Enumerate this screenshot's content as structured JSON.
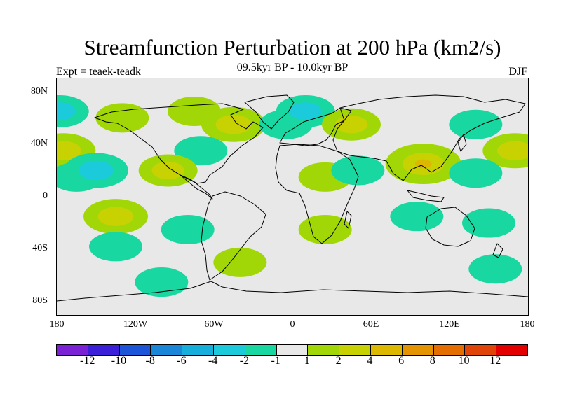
{
  "title": "Streamfunction Perturbation at 200 hPa (km2/s)",
  "experiment": "Expt = teaek-teadk",
  "period": "09.5kyr BP - 10.0kyr BP",
  "season": "DJF",
  "y_ticks": [
    "80N",
    "40N",
    "0",
    "40S",
    "80S"
  ],
  "x_ticks": [
    "180",
    "120W",
    "60W",
    "0",
    "60E",
    "120E",
    "180"
  ],
  "colorbar": {
    "colors": [
      "#7a22d4",
      "#3b1fd9",
      "#1c55d8",
      "#1a86d8",
      "#16aedb",
      "#1bcadb",
      "#19d7a0",
      "#e8e8e8",
      "#a2d707",
      "#c8d203",
      "#dcb800",
      "#e49400",
      "#e46e00",
      "#e04408",
      "#e40000"
    ],
    "labels": [
      "-12",
      "-10",
      "-8",
      "-6",
      "-4",
      "-2",
      "-1",
      "1",
      "2",
      "4",
      "6",
      "8",
      "10",
      "12"
    ]
  },
  "chart_data": {
    "type": "heatmap",
    "title": "Streamfunction Perturbation at 200 hPa (km2/s)",
    "projection": "cylindrical-equidistant",
    "xlim": [
      -180,
      180
    ],
    "ylim": [
      -90,
      90
    ],
    "levels": [
      -12,
      -10,
      -8,
      -6,
      -4,
      -2,
      -1,
      1,
      2,
      4,
      6,
      8,
      10,
      12
    ],
    "anomalies": [
      {
        "lon": -175,
        "lat": 35,
        "value": 2.5
      },
      {
        "lon": -165,
        "lat": 15,
        "value": -1.5
      },
      {
        "lon": -150,
        "lat": 20,
        "value": -2.5
      },
      {
        "lon": -178,
        "lat": 65,
        "value": -2
      },
      {
        "lon": -130,
        "lat": 60,
        "value": 1.5
      },
      {
        "lon": -75,
        "lat": 65,
        "value": 1.5
      },
      {
        "lon": -45,
        "lat": 55,
        "value": 2.5
      },
      {
        "lon": -70,
        "lat": 35,
        "value": -1.5
      },
      {
        "lon": -95,
        "lat": 20,
        "value": 2
      },
      {
        "lon": -135,
        "lat": -15,
        "value": 2.5
      },
      {
        "lon": -80,
        "lat": -25,
        "value": -1.5
      },
      {
        "lon": -135,
        "lat": -38,
        "value": -1.5
      },
      {
        "lon": -100,
        "lat": -65,
        "value": -1.5
      },
      {
        "lon": -40,
        "lat": -50,
        "value": 1.5
      },
      {
        "lon": -5,
        "lat": 55,
        "value": -1.5
      },
      {
        "lon": 10,
        "lat": 65,
        "value": -2
      },
      {
        "lon": 45,
        "lat": 55,
        "value": 2
      },
      {
        "lon": 25,
        "lat": 15,
        "value": 1.5
      },
      {
        "lon": 50,
        "lat": 20,
        "value": -1.5
      },
      {
        "lon": 25,
        "lat": -25,
        "value": 1.5
      },
      {
        "lon": 100,
        "lat": 25,
        "value": 3.5
      },
      {
        "lon": 95,
        "lat": -15,
        "value": -1.5
      },
      {
        "lon": 140,
        "lat": 55,
        "value": -1.5
      },
      {
        "lon": 170,
        "lat": 35,
        "value": 2.5
      },
      {
        "lon": 140,
        "lat": 18,
        "value": -1.5
      },
      {
        "lon": 150,
        "lat": -20,
        "value": -1.5
      },
      {
        "lon": 155,
        "lat": -55,
        "value": -1.5
      }
    ]
  }
}
